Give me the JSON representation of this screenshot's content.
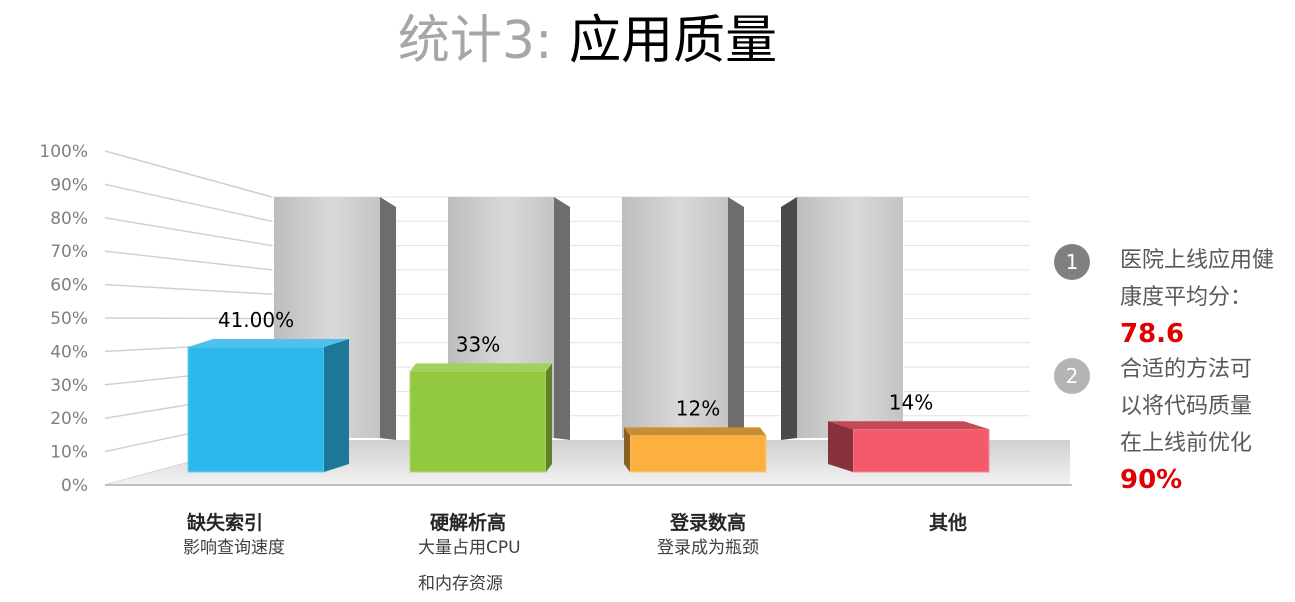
{
  "title": {
    "prefix": "统计3: ",
    "main": "应用质量"
  },
  "chart_data": {
    "type": "bar",
    "categories": [
      "缺失索引",
      "硬解析高",
      "登录数高",
      "其他"
    ],
    "subtitles": [
      [
        "影响查询速度"
      ],
      [
        "大量占用CPU",
        "和内存资源"
      ],
      [
        "登录成为瓶颈"
      ],
      []
    ],
    "values": [
      41,
      33,
      12,
      14
    ],
    "data_labels": [
      "41.00%",
      "33%",
      "12%",
      "14%"
    ],
    "colors": [
      "#2db7ea",
      "#92c83e",
      "#fbb040",
      "#f55a6c"
    ],
    "y_ticks": [
      "0%",
      "10%",
      "20%",
      "30%",
      "40%",
      "50%",
      "60%",
      "70%",
      "80%",
      "90%",
      "100%"
    ],
    "ylim": [
      0,
      100
    ],
    "grid": true
  },
  "notes": [
    {
      "num": "1",
      "text": [
        "医院上线应用健",
        "康度平均分："
      ],
      "value": "78.6",
      "badge_color": "#808080"
    },
    {
      "num": "2",
      "text": [
        "合适的方法可",
        "以将代码质量",
        "在上线前优化"
      ],
      "value": "90%",
      "badge_color": "#b4b4b4"
    }
  ]
}
